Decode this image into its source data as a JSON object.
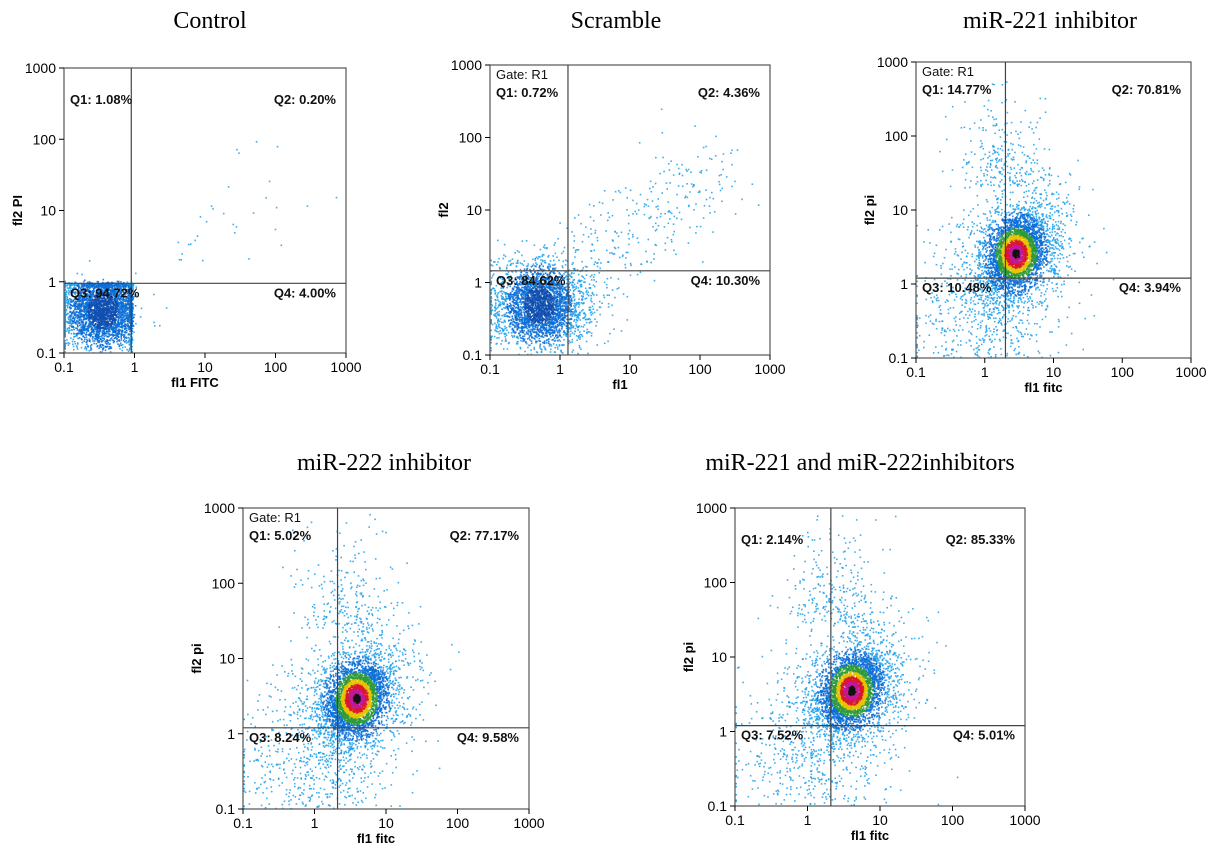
{
  "chart_data": [
    {
      "type": "scatter",
      "title": "Control",
      "xlabel": "fl1  FITC",
      "ylabel": "fl2  PI",
      "xscale": "log",
      "yscale": "log",
      "xlim": [
        0.1,
        1000
      ],
      "ylim": [
        0.1,
        1000
      ],
      "x_ticks": [
        "0.1",
        "1",
        "10",
        "100",
        "1000"
      ],
      "y_ticks": [
        "0.1",
        "1",
        "10",
        "100",
        "1000"
      ],
      "gate": "",
      "quadrant_divider": {
        "x": 0.9,
        "y": 0.95
      },
      "quadrants": {
        "Q1": "Q1: 1.08%",
        "Q2": "Q2: 0.20%",
        "Q3": "Q3: 94.72%",
        "Q4": "Q4: 4.00%"
      },
      "population_center": {
        "x": 0.35,
        "y": 0.4
      }
    },
    {
      "type": "scatter",
      "title": "Scramble",
      "xlabel": "fl1",
      "ylabel": "fl2",
      "xscale": "log",
      "yscale": "log",
      "xlim": [
        0.1,
        1000
      ],
      "ylim": [
        0.1,
        1000
      ],
      "x_ticks": [
        "0.1",
        "1",
        "10",
        "100",
        "1000"
      ],
      "y_ticks": [
        "0.1",
        "1",
        "10",
        "100",
        "1000"
      ],
      "gate": "Gate: R1",
      "quadrant_divider": {
        "x": 1.3,
        "y": 1.45
      },
      "quadrants": {
        "Q1": "Q1: 0.72%",
        "Q2": "Q2: 4.36%",
        "Q3": "Q3: 84.62%",
        "Q4": "Q4: 10.30%"
      },
      "population_center": {
        "x": 0.5,
        "y": 0.5
      }
    },
    {
      "type": "scatter",
      "title": "miR-221 inhibitor",
      "xlabel": "fl1  fitc",
      "ylabel": "fl2  pi",
      "xscale": "log",
      "yscale": "log",
      "xlim": [
        0.1,
        1000
      ],
      "ylim": [
        0.1,
        1000
      ],
      "x_ticks": [
        "0.1",
        "1",
        "10",
        "100",
        "1000"
      ],
      "y_ticks": [
        "0.1",
        "1",
        "10",
        "100",
        "1000"
      ],
      "gate": "Gate: R1",
      "quadrant_divider": {
        "x": 2.0,
        "y": 1.2
      },
      "quadrants": {
        "Q1": "Q1: 14.77%",
        "Q2": "Q2: 70.81%",
        "Q3": "Q3: 10.48%",
        "Q4": "Q4: 3.94%"
      },
      "population_center": {
        "x": 2.8,
        "y": 2.6
      }
    },
    {
      "type": "scatter",
      "title": "miR-222 inhibitor",
      "xlabel": "fl1  fitc",
      "ylabel": "fl2  pi",
      "xscale": "log",
      "yscale": "log",
      "xlim": [
        0.1,
        1000
      ],
      "ylim": [
        0.1,
        1000
      ],
      "x_ticks": [
        "0.1",
        "1",
        "10",
        "100",
        "1000"
      ],
      "y_ticks": [
        "0.1",
        "1",
        "10",
        "100",
        "1000"
      ],
      "gate": "Gate: R1",
      "quadrant_divider": {
        "x": 2.1,
        "y": 1.2
      },
      "quadrants": {
        "Q1": "Q1: 5.02%",
        "Q2": "Q2: 77.17%",
        "Q3": "Q3: 8.24%",
        "Q4": "Q4: 9.58%"
      },
      "population_center": {
        "x": 3.8,
        "y": 3.0
      }
    },
    {
      "type": "scatter",
      "title": "miR-221 and miR-222inhibitors",
      "xlabel": "fl1  fitc",
      "ylabel": "fl2  pi",
      "xscale": "log",
      "yscale": "log",
      "xlim": [
        0.1,
        1000
      ],
      "ylim": [
        0.1,
        1000
      ],
      "x_ticks": [
        "0.1",
        "1",
        "10",
        "100",
        "1000"
      ],
      "y_ticks": [
        "0.1",
        "1",
        "10",
        "100",
        "1000"
      ],
      "gate": "",
      "quadrant_divider": {
        "x": 2.1,
        "y": 1.2
      },
      "quadrants": {
        "Q1": "Q1: 2.14%",
        "Q2": "Q2: 85.33%",
        "Q3": "Q3: 7.52%",
        "Q4": "Q4: 5.01%"
      },
      "population_center": {
        "x": 4.0,
        "y": 3.6
      }
    }
  ],
  "colors": {
    "sparse": "#1fa0ea",
    "medium": "#0a6fd6",
    "dense_green": "#2e9a3a",
    "dense_yellow": "#e6c200",
    "dense_red": "#d8182a",
    "dense_magenta": "#c2189a",
    "core": "#111111",
    "axis": "#000000"
  }
}
